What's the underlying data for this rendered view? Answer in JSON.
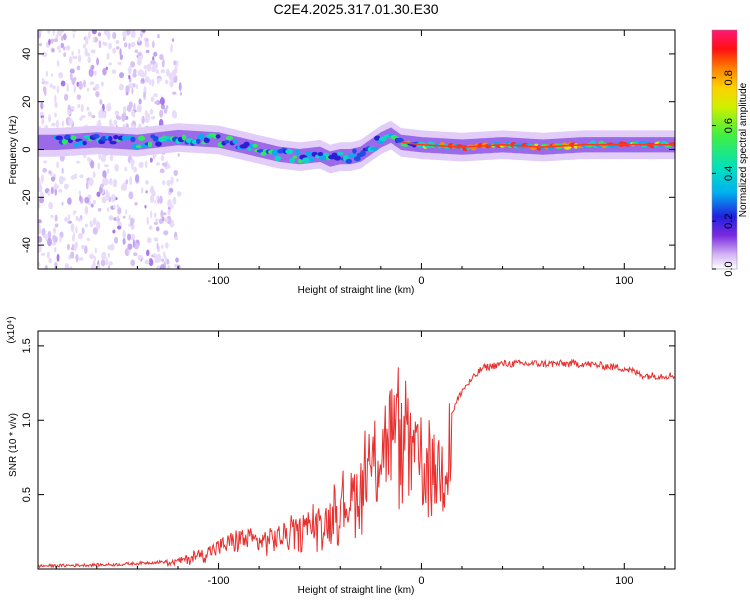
{
  "chart_data": [
    {
      "type": "heatmap",
      "title": "C2E4.2025.317.01.30.E30",
      "xlabel": "Height of straight line (km)",
      "ylabel": "Frequency (Hz)",
      "xlim": [
        -189,
        125
      ],
      "ylim": [
        -50,
        50
      ],
      "xticks": [
        -100,
        0,
        100
      ],
      "yticks": [
        -40,
        -20,
        0,
        20,
        40
      ],
      "ytick_labels": [
        "-40",
        "-20",
        "0",
        "20",
        "40"
      ],
      "colorbar": {
        "label": "Normalized spectral amplitude",
        "range": [
          0,
          1
        ],
        "ticks": [
          0.0,
          0.2,
          0.4,
          0.6,
          0.8
        ],
        "tick_labels": [
          "0.0",
          "0.2",
          "0.4",
          "0.6",
          "0.8"
        ]
      },
      "ridge": {
        "description": "dominant frequency versus height",
        "x": [
          -180,
          -160,
          -140,
          -120,
          -100,
          -90,
          -80,
          -70,
          -60,
          -50,
          -45,
          -40,
          -35,
          -30,
          -25,
          -20,
          -15,
          -10,
          0,
          20,
          40,
          60,
          80,
          100,
          125
        ],
        "y": [
          3,
          4,
          3,
          5,
          4,
          2,
          0,
          -2,
          -3,
          -2,
          -4,
          -3,
          -3,
          -2,
          1,
          4,
          6,
          3,
          2,
          1,
          2,
          1,
          2,
          2,
          2
        ],
        "noise_region_x": [
          -189,
          -125
        ]
      }
    },
    {
      "type": "line",
      "xlabel": "Height of straight line (km)",
      "ylabel": "SNR (10 * v/v)",
      "scale_label": "(x10⁴)",
      "xlim": [
        -189,
        125
      ],
      "ylim": [
        0,
        1.6
      ],
      "xticks": [
        -100,
        0,
        100
      ],
      "yticks": [
        0.5,
        1.0,
        1.5
      ],
      "ytick_labels": [
        "0.5",
        "1.0",
        "1.5"
      ],
      "series": [
        {
          "name": "SNR",
          "color": "#e8302f",
          "envelope_x": [
            -189,
            -150,
            -125,
            -110,
            -100,
            -90,
            -80,
            -70,
            -60,
            -50,
            -40,
            -30,
            -25,
            -20,
            -15,
            -10,
            -5,
            0,
            5,
            10,
            15,
            20,
            30,
            40,
            60,
            80,
            100,
            110,
            125
          ],
          "envelope_y": [
            0.02,
            0.03,
            0.05,
            0.12,
            0.2,
            0.28,
            0.25,
            0.3,
            0.35,
            0.4,
            0.55,
            0.75,
            0.9,
            1.1,
            1.3,
            1.15,
            1.05,
            0.95,
            0.9,
            0.95,
            1.05,
            1.2,
            1.35,
            1.38,
            1.38,
            1.38,
            1.35,
            1.3,
            1.3
          ]
        }
      ]
    }
  ]
}
